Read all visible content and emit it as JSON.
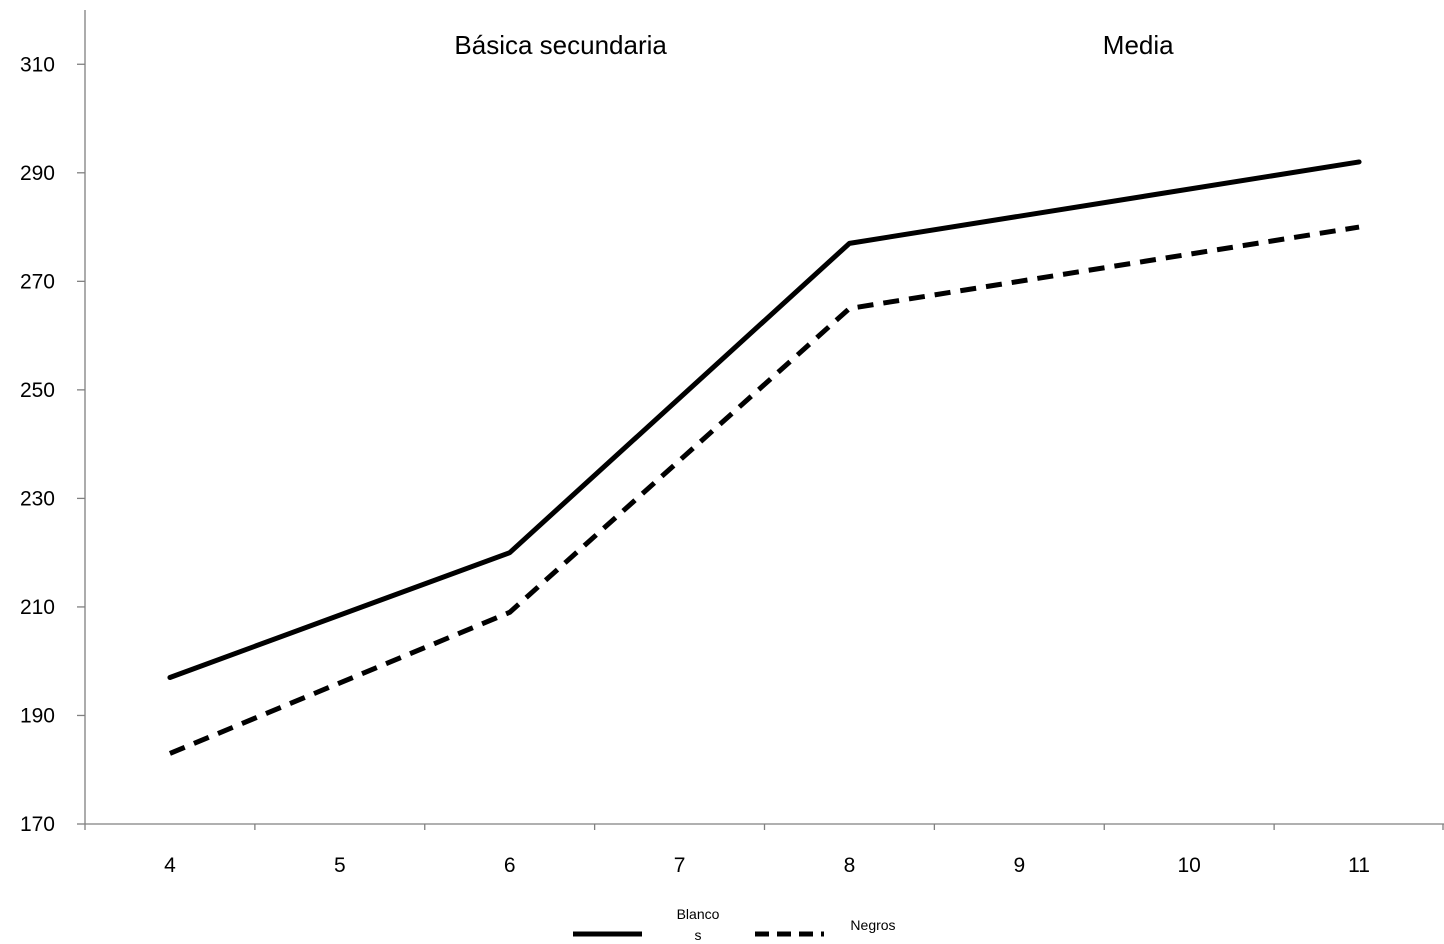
{
  "chart_data": {
    "type": "line",
    "x": [
      4,
      5,
      6,
      7,
      8,
      9,
      10,
      11
    ],
    "x_tick_labels": [
      "4",
      "5",
      "6",
      "7",
      "8",
      "9",
      "10",
      "11"
    ],
    "xlim": [
      3.5,
      11.5
    ],
    "ylim": [
      170,
      320
    ],
    "y_ticks": [
      170,
      190,
      210,
      230,
      250,
      270,
      290,
      310
    ],
    "y_tick_labels": [
      "170",
      "190",
      "210",
      "230",
      "250",
      "270",
      "290",
      "310"
    ],
    "grid": false,
    "legend_position": "bottom-center",
    "annotations": [
      {
        "text": "Básica secundaria",
        "x": 6.3
      },
      {
        "text": "Media",
        "x": 9.7
      }
    ],
    "series": [
      {
        "name": "Blancos",
        "legend_line1": "Blanco",
        "legend_line2": "s",
        "x": [
          4,
          6,
          8,
          11
        ],
        "values": [
          197,
          220,
          277,
          292
        ],
        "color": "#000000",
        "dash": "solid"
      },
      {
        "name": "Negros",
        "legend_line1": "Negros",
        "legend_line2": "",
        "x": [
          4,
          6,
          8,
          11
        ],
        "values": [
          183,
          209,
          265,
          280
        ],
        "color": "#000000",
        "dash": "dashed"
      }
    ]
  }
}
